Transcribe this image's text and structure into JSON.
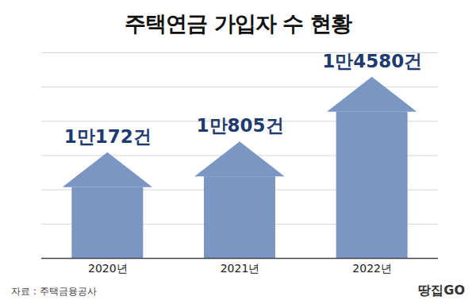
{
  "chart_data": {
    "type": "bar",
    "title": "주택연금 가입자 수 현황",
    "categories": [
      "2020년",
      "2021년",
      "2022년"
    ],
    "values": [
      10172,
      10805,
      14580
    ],
    "value_labels": [
      "1만172건",
      "1만805건",
      "1만4580건"
    ],
    "color": "#7b96c2",
    "ylim": [
      4000,
      16000
    ],
    "yticks": [
      4000,
      6000,
      8000,
      10000,
      12000,
      14000,
      16000
    ],
    "grid": true,
    "data_labels": true,
    "tick_labels": "x",
    "source": "자료 : 주택금융공사",
    "logo": "땅집GO"
  }
}
